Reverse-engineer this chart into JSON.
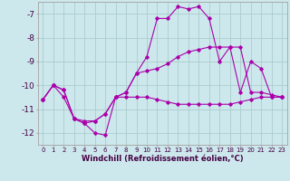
{
  "background_color": "#cce8ec",
  "grid_color": "#aacccc",
  "line_color": "#aa00aa",
  "hours": [
    0,
    1,
    2,
    3,
    4,
    5,
    6,
    7,
    8,
    9,
    10,
    11,
    12,
    13,
    14,
    15,
    16,
    17,
    18,
    19,
    20,
    21,
    22,
    23
  ],
  "line1": [
    -10.6,
    -10.0,
    -10.2,
    -11.4,
    -11.6,
    -12.0,
    -12.1,
    -10.5,
    -10.3,
    -9.5,
    -8.8,
    -7.2,
    -7.2,
    -6.7,
    -6.8,
    -6.7,
    -7.2,
    -9.0,
    -8.4,
    -10.3,
    -9.0,
    -9.3,
    -10.5,
    -10.5
  ],
  "line2": [
    -10.6,
    -10.0,
    -10.2,
    -11.4,
    -11.6,
    -11.5,
    -11.2,
    -10.5,
    -10.3,
    -9.5,
    -9.4,
    -9.3,
    -9.1,
    -8.8,
    -8.6,
    -8.5,
    -8.4,
    -8.4,
    -8.4,
    -8.4,
    -10.3,
    -10.3,
    -10.4,
    -10.5
  ],
  "line3": [
    -10.6,
    -10.0,
    -10.5,
    -11.4,
    -11.5,
    -11.5,
    -11.2,
    -10.5,
    -10.5,
    -10.5,
    -10.5,
    -10.6,
    -10.7,
    -10.8,
    -10.8,
    -10.8,
    -10.8,
    -10.8,
    -10.8,
    -10.7,
    -10.6,
    -10.5,
    -10.5,
    -10.5
  ],
  "ylim": [
    -12.5,
    -6.5
  ],
  "yticks": [
    -12,
    -11,
    -10,
    -9,
    -8,
    -7
  ],
  "xlim": [
    -0.5,
    23.5
  ],
  "xticks": [
    0,
    1,
    2,
    3,
    4,
    5,
    6,
    7,
    8,
    9,
    10,
    11,
    12,
    13,
    14,
    15,
    16,
    17,
    18,
    19,
    20,
    21,
    22,
    23
  ],
  "xlabel": "Windchill (Refroidissement éolien,°C)",
  "ytick_labels": [
    "-12",
    "-11",
    "-10",
    "-9",
    "-8",
    "-7"
  ],
  "xtick_fontsize": 5.0,
  "ytick_fontsize": 6.5,
  "xlabel_fontsize": 6.0
}
